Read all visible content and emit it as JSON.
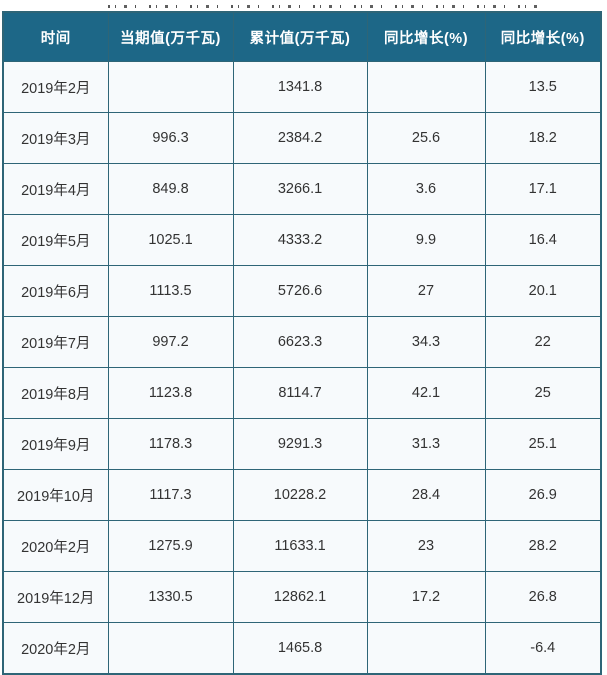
{
  "colors": {
    "header_bg": "#1d6787",
    "header_text": "#ffffff",
    "grid_border": "#2e6577",
    "row_bg": "#f7fafc",
    "cell_text": "#333333"
  },
  "chart_data": {
    "type": "table",
    "columns": [
      "时间",
      "当期值(万千瓦)",
      "累计值(万千瓦)",
      "同比增长(%)",
      "同比增长(%)"
    ],
    "rows": [
      [
        "2019年2月",
        "",
        "1341.8",
        "",
        "13.5"
      ],
      [
        "2019年3月",
        "996.3",
        "2384.2",
        "25.6",
        "18.2"
      ],
      [
        "2019年4月",
        "849.8",
        "3266.1",
        "3.6",
        "17.1"
      ],
      [
        "2019年5月",
        "1025.1",
        "4333.2",
        "9.9",
        "16.4"
      ],
      [
        "2019年6月",
        "1113.5",
        "5726.6",
        "27",
        "20.1"
      ],
      [
        "2019年7月",
        "997.2",
        "6623.3",
        "34.3",
        "22"
      ],
      [
        "2019年8月",
        "1123.8",
        "8114.7",
        "42.1",
        "25"
      ],
      [
        "2019年9月",
        "1178.3",
        "9291.3",
        "31.3",
        "25.1"
      ],
      [
        "2019年10月",
        "1117.3",
        "10228.2",
        "28.4",
        "26.9"
      ],
      [
        "2020年2月",
        "1275.9",
        "11633.1",
        "23",
        "28.2"
      ],
      [
        "2019年12月",
        "1330.5",
        "12862.1",
        "17.2",
        "26.8"
      ],
      [
        "2020年2月",
        "",
        "1465.8",
        "",
        "-6.4"
      ]
    ]
  }
}
